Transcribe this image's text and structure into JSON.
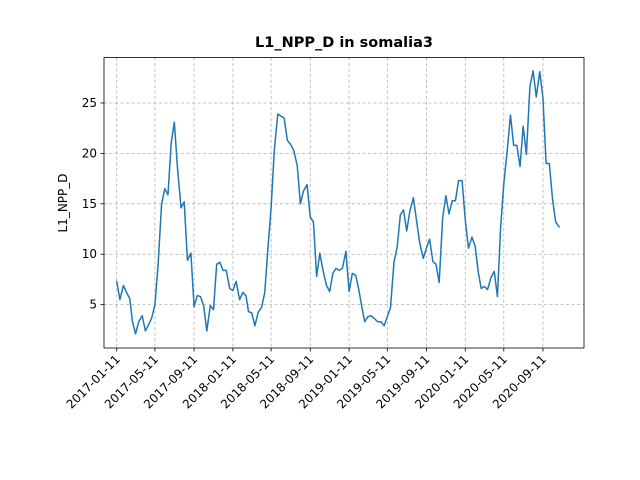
{
  "chart_data": {
    "type": "line",
    "title": "L1_NPP_D in somalia3",
    "xlabel": "",
    "ylabel": "L1_NPP_D",
    "grid": true,
    "y_ticks": [
      5,
      10,
      15,
      20,
      25
    ],
    "ylim": [
      0.7,
      29.5
    ],
    "xlim": [
      "2016-12-02",
      "2021-01-18"
    ],
    "x_ticks": [
      "2017-01-11",
      "2017-05-11",
      "2017-09-11",
      "2018-01-11",
      "2018-05-11",
      "2018-09-11",
      "2019-01-11",
      "2019-05-11",
      "2019-09-11",
      "2020-01-11",
      "2020-05-11",
      "2020-09-11"
    ],
    "series": [
      {
        "color": "#1f77b4",
        "x": [
          "2017-01-11",
          "2017-01-21",
          "2017-02-01",
          "2017-02-11",
          "2017-02-21",
          "2017-03-01",
          "2017-03-11",
          "2017-03-21",
          "2017-04-01",
          "2017-04-11",
          "2017-04-21",
          "2017-05-01",
          "2017-05-11",
          "2017-05-21",
          "2017-06-01",
          "2017-06-11",
          "2017-06-21",
          "2017-07-01",
          "2017-07-11",
          "2017-07-21",
          "2017-08-01",
          "2017-08-11",
          "2017-08-21",
          "2017-09-01",
          "2017-09-11",
          "2017-09-21",
          "2017-10-01",
          "2017-10-11",
          "2017-10-21",
          "2017-11-01",
          "2017-11-11",
          "2017-11-21",
          "2017-12-01",
          "2017-12-11",
          "2017-12-21",
          "2018-01-01",
          "2018-01-11",
          "2018-01-21",
          "2018-02-01",
          "2018-02-11",
          "2018-02-21",
          "2018-03-01",
          "2018-03-11",
          "2018-03-21",
          "2018-04-01",
          "2018-04-11",
          "2018-04-21",
          "2018-05-01",
          "2018-05-11",
          "2018-05-21",
          "2018-06-01",
          "2018-06-11",
          "2018-06-21",
          "2018-07-01",
          "2018-07-11",
          "2018-07-21",
          "2018-08-01",
          "2018-08-11",
          "2018-08-21",
          "2018-09-01",
          "2018-09-11",
          "2018-09-21",
          "2018-10-01",
          "2018-10-11",
          "2018-10-21",
          "2018-11-01",
          "2018-11-11",
          "2018-11-21",
          "2018-12-01",
          "2018-12-11",
          "2018-12-21",
          "2019-01-01",
          "2019-01-11",
          "2019-01-21",
          "2019-02-01",
          "2019-02-11",
          "2019-02-21",
          "2019-03-01",
          "2019-03-11",
          "2019-03-21",
          "2019-04-01",
          "2019-04-11",
          "2019-04-21",
          "2019-05-01",
          "2019-05-11",
          "2019-05-21",
          "2019-06-01",
          "2019-06-11",
          "2019-06-21",
          "2019-07-01",
          "2019-07-11",
          "2019-07-21",
          "2019-08-01",
          "2019-08-11",
          "2019-08-21",
          "2019-09-01",
          "2019-09-11",
          "2019-09-21",
          "2019-10-01",
          "2019-10-11",
          "2019-10-21",
          "2019-11-01",
          "2019-11-11",
          "2019-11-21",
          "2019-12-01",
          "2019-12-11",
          "2019-12-21",
          "2020-01-01",
          "2020-01-11",
          "2020-01-21",
          "2020-02-01",
          "2020-02-11",
          "2020-02-21",
          "2020-03-01",
          "2020-03-11",
          "2020-03-21",
          "2020-04-01",
          "2020-04-11",
          "2020-04-21",
          "2020-05-01",
          "2020-05-11",
          "2020-05-21",
          "2020-06-01",
          "2020-06-11",
          "2020-06-21",
          "2020-07-01",
          "2020-07-11",
          "2020-07-21",
          "2020-08-01",
          "2020-08-11",
          "2020-08-21",
          "2020-09-01",
          "2020-09-11",
          "2020-09-21",
          "2020-10-01",
          "2020-10-11",
          "2020-10-21",
          "2020-11-01"
        ],
        "y": [
          7.3,
          5.5,
          6.9,
          6.2,
          5.6,
          3.4,
          2.1,
          3.3,
          3.9,
          2.4,
          3.0,
          3.7,
          5.0,
          9.0,
          15.0,
          16.5,
          15.9,
          21.0,
          23.1,
          18.5,
          14.6,
          15.2,
          9.4,
          10.1,
          4.8,
          5.9,
          5.8,
          4.9,
          2.4,
          4.9,
          4.5,
          9.0,
          9.2,
          8.4,
          8.4,
          6.6,
          6.4,
          7.3,
          5.5,
          6.2,
          5.9,
          4.3,
          4.2,
          2.9,
          4.3,
          4.7,
          6.2,
          10.6,
          14.6,
          20.3,
          23.9,
          23.7,
          23.5,
          21.3,
          20.9,
          20.3,
          18.8,
          15.0,
          16.3,
          16.9,
          13.7,
          13.2,
          7.8,
          10.1,
          8.4,
          6.9,
          6.3,
          8.1,
          8.6,
          8.4,
          8.6,
          10.3,
          6.3,
          8.1,
          7.9,
          6.4,
          4.6,
          3.3,
          3.8,
          3.9,
          3.6,
          3.3,
          3.3,
          2.9,
          3.8,
          4.7,
          9.2,
          10.7,
          13.9,
          14.4,
          12.3,
          14.3,
          15.6,
          13.3,
          11.1,
          9.6,
          10.6,
          11.5,
          9.3,
          9.0,
          7.2,
          13.6,
          15.8,
          14.0,
          15.3,
          15.3,
          17.3,
          17.3,
          13.4,
          10.6,
          11.7,
          10.8,
          8.2,
          6.6,
          6.8,
          6.5,
          7.7,
          8.3,
          5.8,
          12.6,
          17.0,
          20.0,
          23.8,
          20.8,
          20.8,
          18.7,
          22.7,
          19.9,
          26.6,
          28.2,
          25.6,
          28.1,
          25.5,
          19.0,
          19.0,
          15.5,
          13.2,
          12.7
        ]
      }
    ]
  }
}
